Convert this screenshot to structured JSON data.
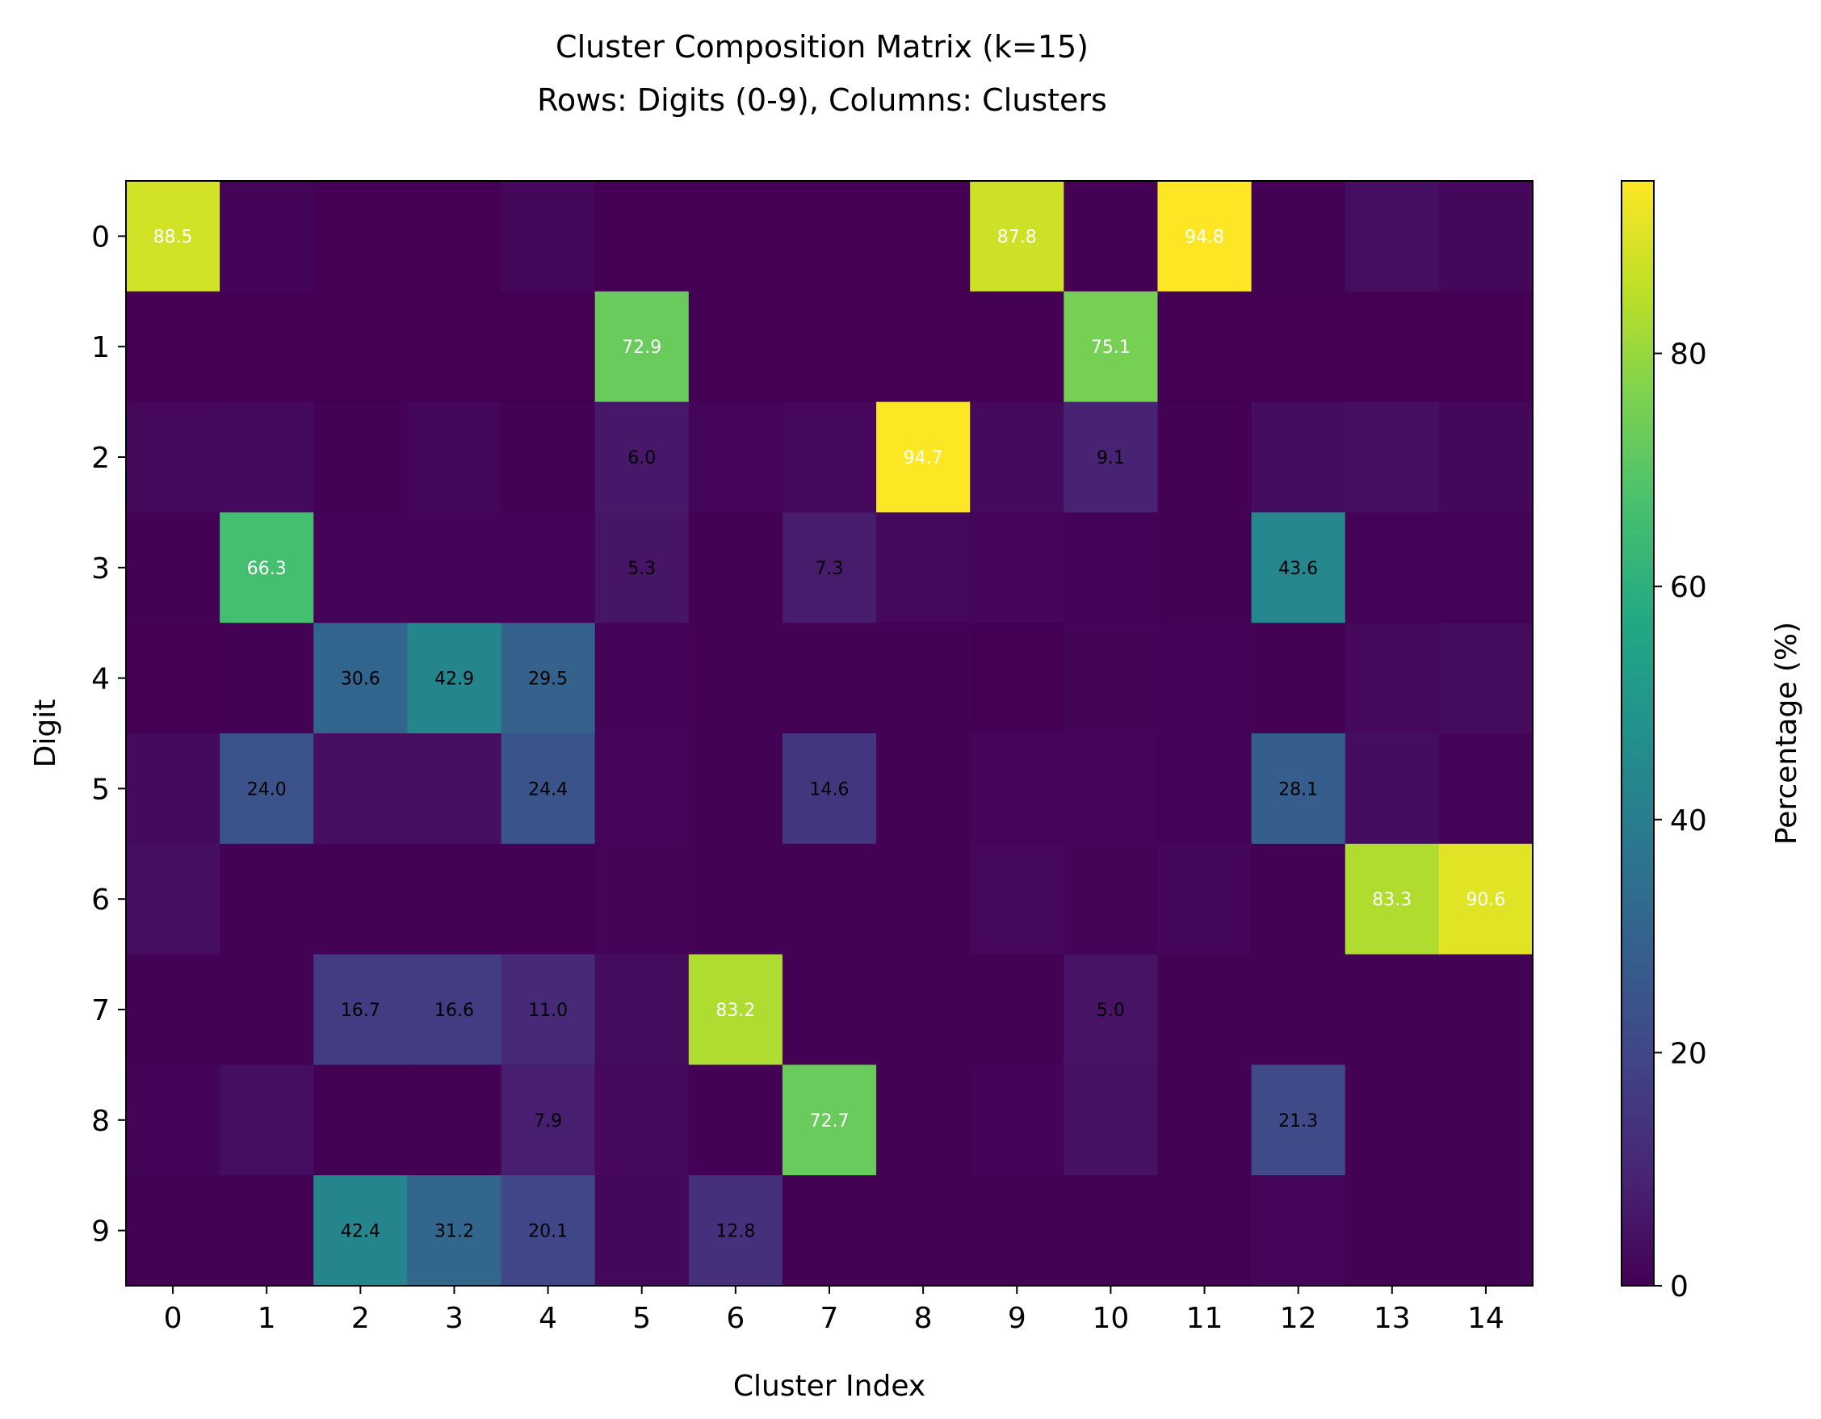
{
  "chart_data": {
    "type": "heatmap",
    "title_line1": "Cluster Composition Matrix (k=15)",
    "title_line2": "Rows: Digits (0-9), Columns: Clusters",
    "xlabel": "Cluster Index",
    "ylabel": "Digit",
    "colorbar_label": "Percentage (%)",
    "colormap": "viridis",
    "x_categories": [
      "0",
      "1",
      "2",
      "3",
      "4",
      "5",
      "6",
      "7",
      "8",
      "9",
      "10",
      "11",
      "12",
      "13",
      "14"
    ],
    "y_categories": [
      "0",
      "1",
      "2",
      "3",
      "4",
      "5",
      "6",
      "7",
      "8",
      "9"
    ],
    "colorbar_ticks": [
      0,
      20,
      40,
      60,
      80
    ],
    "value_range": [
      0,
      94.8
    ],
    "annotation_threshold": 5.0,
    "annotation_light_text_above": 60,
    "values": [
      [
        88.5,
        0.9,
        0.1,
        0.1,
        1.5,
        0.1,
        0.1,
        0.1,
        0.1,
        87.8,
        0.2,
        94.8,
        0.4,
        3.5,
        1.6
      ],
      [
        0.1,
        0.1,
        0.1,
        0.1,
        0.1,
        72.9,
        0.1,
        0.1,
        0.1,
        0.1,
        75.1,
        0.1,
        0.1,
        0.1,
        0.1
      ],
      [
        1.8,
        2.5,
        0.2,
        1.5,
        0.3,
        6.0,
        1.3,
        2.0,
        94.7,
        2.5,
        9.1,
        0.2,
        3.2,
        3.5,
        1.7
      ],
      [
        0.2,
        66.3,
        0.9,
        0.9,
        0.5,
        5.3,
        0.2,
        7.3,
        2.0,
        1.3,
        0.5,
        0.2,
        43.6,
        0.5,
        0.5
      ],
      [
        0.1,
        0.2,
        30.6,
        42.9,
        29.5,
        0.8,
        0.3,
        0.3,
        0.3,
        0.1,
        1.0,
        0.6,
        0.3,
        1.8,
        2.6
      ],
      [
        2.5,
        24.0,
        3.6,
        3.6,
        24.4,
        1.2,
        0.3,
        14.6,
        0.3,
        1.2,
        1.2,
        0.5,
        28.1,
        3.3,
        0.5
      ],
      [
        3.5,
        0.2,
        0.2,
        0.3,
        0.3,
        1.0,
        0.3,
        0.3,
        0.3,
        2.0,
        1.0,
        1.5,
        0.4,
        83.3,
        90.6
      ],
      [
        0.3,
        0.3,
        16.7,
        16.6,
        11.0,
        2.6,
        83.2,
        0.3,
        0.3,
        0.3,
        5.0,
        0.3,
        0.3,
        0.2,
        0.2
      ],
      [
        0.8,
        3.6,
        0.3,
        0.3,
        7.9,
        2.0,
        0.3,
        72.7,
        0.3,
        0.8,
        4.2,
        0.3,
        21.3,
        0.3,
        0.3
      ],
      [
        0.3,
        0.3,
        42.4,
        31.2,
        20.1,
        1.5,
        12.8,
        0.3,
        0.3,
        0.3,
        0.3,
        0.3,
        1.2,
        0.3,
        0.3
      ]
    ]
  }
}
